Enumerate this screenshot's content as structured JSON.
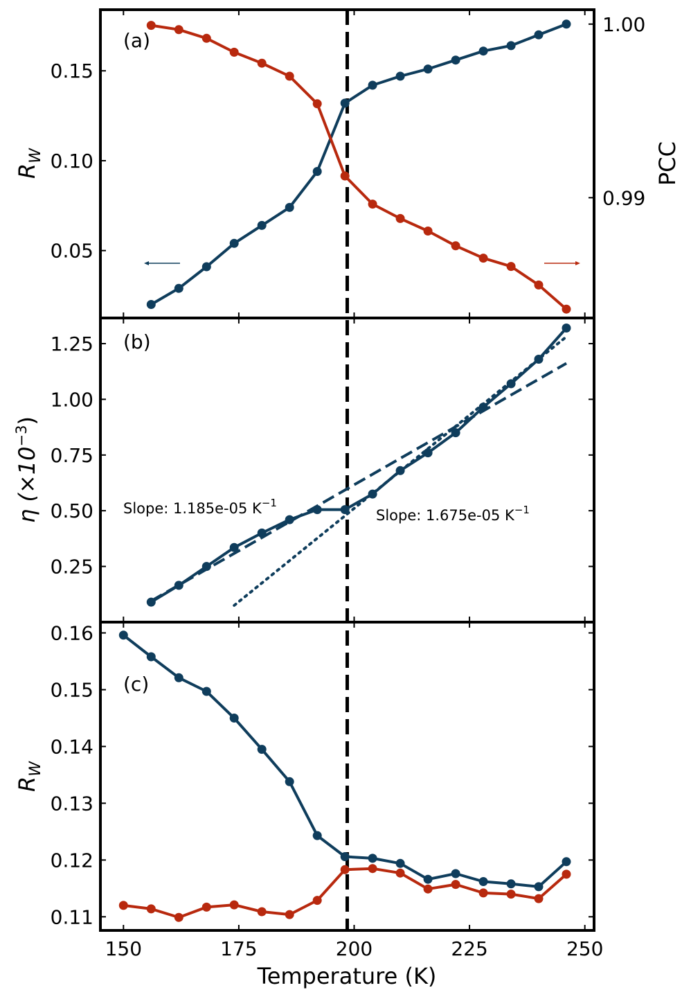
{
  "chart_data": [
    {
      "panel_label": "(a)",
      "type": "line",
      "x": [
        156,
        162,
        168,
        174,
        180,
        186,
        192,
        198,
        204,
        210,
        216,
        222,
        228,
        234,
        240,
        246
      ],
      "series": [
        {
          "name": "R_W",
          "axis": "left",
          "color": "#0f3d5c",
          "values": [
            0.02,
            0.029,
            0.041,
            0.054,
            0.064,
            0.074,
            0.094,
            0.132,
            0.142,
            0.147,
            0.151,
            0.156,
            0.161,
            0.164,
            0.17,
            0.176
          ]
        },
        {
          "name": "PCC",
          "axis": "right",
          "color": "#b8290e",
          "values": [
            0.99993,
            0.99968,
            0.99918,
            0.99838,
            0.99775,
            0.997,
            0.99541,
            0.99125,
            0.98963,
            0.9888,
            0.98808,
            0.98723,
            0.98652,
            0.98604,
            0.98497,
            0.98358
          ]
        }
      ],
      "xlim": [
        145,
        252
      ],
      "ylim": [
        0.0125,
        0.184
      ],
      "y2lim": [
        0.98307,
        1.00083
      ],
      "yticks": [
        0.05,
        0.1,
        0.15
      ],
      "ytick_labels": [
        "0.05",
        "0.10",
        "0.15"
      ],
      "y2ticks": [
        0.99,
        1.0
      ],
      "y2tick_labels": [
        "0.99",
        "1.00"
      ],
      "ylabel": "R",
      "ylabel_sub": "W",
      "y2label": "PCC",
      "left_arrow_color": "#0f3d5c",
      "right_arrow_color": "#b8290e"
    },
    {
      "panel_label": "(b)",
      "type": "line",
      "x": [
        156,
        162,
        168,
        174,
        180,
        186,
        192,
        198,
        204,
        210,
        216,
        222,
        228,
        234,
        240,
        246
      ],
      "series": [
        {
          "name": "eta",
          "color": "#0f3d5c",
          "values": [
            0.09,
            0.165,
            0.25,
            0.335,
            0.4,
            0.46,
            0.505,
            0.505,
            0.575,
            0.68,
            0.76,
            0.85,
            0.965,
            1.07,
            1.18,
            1.32
          ]
        }
      ],
      "fits": [
        {
          "style": "dashed",
          "x": [
            156,
            246
          ],
          "y": [
            0.095,
            1.1615
          ],
          "slope_label": "Slope: 1.185e-05 K",
          "slope_sup": "−1"
        },
        {
          "style": "dotted",
          "x": [
            174,
            246
          ],
          "y": [
            0.075,
            1.281
          ],
          "slope_label": "Slope: 1.675e-05 K",
          "slope_sup": "−1"
        }
      ],
      "xlim": [
        145,
        252
      ],
      "ylim": [
        0.0,
        1.365
      ],
      "yticks": [
        0.25,
        0.5,
        0.75,
        1.0,
        1.25
      ],
      "ytick_labels": [
        "0.25",
        "0.50",
        "0.75",
        "1.00",
        "1.25"
      ],
      "ylabel_prefix": "η (×10",
      "ylabel_sup": "−3",
      "ylabel_suffix": ")"
    },
    {
      "panel_label": "(c)",
      "type": "line",
      "x": [
        150,
        156,
        162,
        168,
        174,
        180,
        186,
        192,
        198,
        204,
        210,
        216,
        222,
        228,
        234,
        240,
        246
      ],
      "series": [
        {
          "name": "R_W (blue)",
          "color": "#0f3d5c",
          "values": [
            0.1596,
            0.1558,
            0.1521,
            0.1497,
            0.145,
            0.1395,
            0.1338,
            0.1243,
            0.1206,
            0.1203,
            0.1194,
            0.1166,
            0.1176,
            0.1162,
            0.1158,
            0.1153,
            0.1197
          ]
        },
        {
          "name": "R_W (red)",
          "color": "#b8290e",
          "values": [
            0.112,
            0.1114,
            0.1099,
            0.1117,
            0.1121,
            0.1109,
            0.1104,
            0.1129,
            0.1183,
            0.1185,
            0.1177,
            0.1149,
            0.1157,
            0.1142,
            0.114,
            0.1132,
            0.1175
          ]
        }
      ],
      "xlim": [
        145,
        252
      ],
      "ylim": [
        0.1076,
        0.1619
      ],
      "yticks": [
        0.11,
        0.12,
        0.13,
        0.14,
        0.15,
        0.16
      ],
      "ytick_labels": [
        "0.11",
        "0.12",
        "0.13",
        "0.14",
        "0.15",
        "0.16"
      ],
      "ylabel": "R",
      "ylabel_sub": "W",
      "xticks": [
        150,
        175,
        200,
        225,
        250
      ],
      "xtick_labels": [
        "150",
        "175",
        "200",
        "225",
        "250"
      ],
      "xlabel": "Temperature (K)"
    }
  ],
  "vline_x": 198.5,
  "vline_color": "#000000"
}
